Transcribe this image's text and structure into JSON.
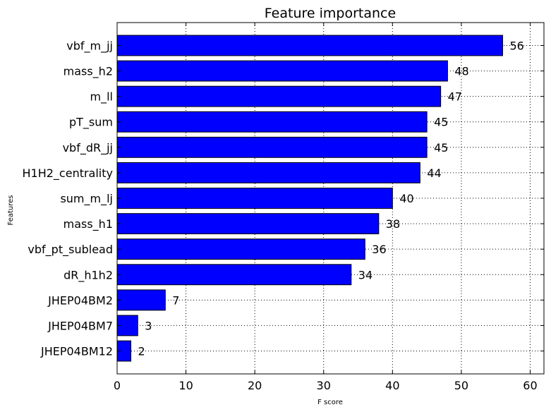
{
  "chart_data": {
    "type": "bar",
    "orientation": "horizontal",
    "title": "Feature importance",
    "xlabel": "F score",
    "ylabel": "Features",
    "xlim": [
      0,
      62
    ],
    "xticks": [
      0,
      10,
      20,
      30,
      40,
      50,
      60
    ],
    "grid": true,
    "legend": "none",
    "bar_color": "#0000ff",
    "categories": [
      "vbf_m_jj",
      "mass_h2",
      "m_ll",
      "pT_sum",
      "vbf_dR_jj",
      "H1H2_centrality",
      "sum_m_lj",
      "mass_h1",
      "vbf_pt_sublead",
      "dR_h1h2",
      "JHEP04BM2",
      "JHEP04BM7",
      "JHEP04BM12"
    ],
    "values": [
      56,
      48,
      47,
      45,
      45,
      44,
      40,
      38,
      36,
      34,
      7,
      3,
      2
    ]
  }
}
